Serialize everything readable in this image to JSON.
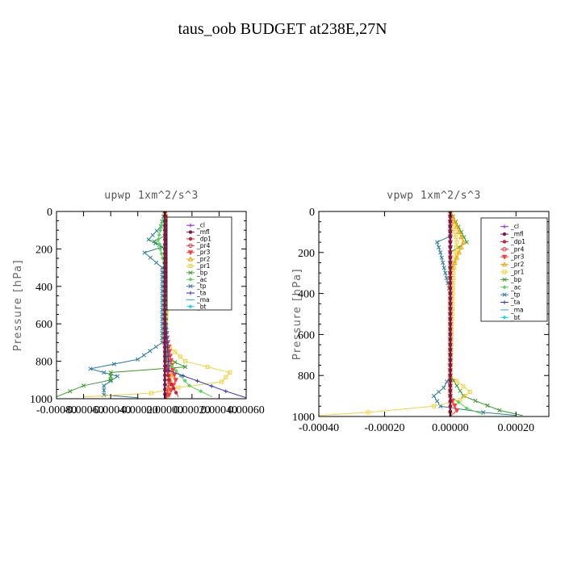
{
  "page": {
    "title": "taus_oob  BUDGET at238E,27N"
  },
  "legend_entries": [
    {
      "name": "_cl",
      "color": "#8a2be2",
      "marker": "star"
    },
    {
      "name": "_mfl",
      "color": "#7a1a4a",
      "marker": "dot"
    },
    {
      "name": "_dp1",
      "color": "#d21f3c",
      "marker": "dot"
    },
    {
      "name": "_pr4",
      "color": "#e8363a",
      "marker": "circle"
    },
    {
      "name": "_pr3",
      "color": "#ff3a3a",
      "marker": "triangle-down"
    },
    {
      "name": "_pr2",
      "color": "#f4a300",
      "marker": "triangle"
    },
    {
      "name": "_pr1",
      "color": "#f2d23a",
      "marker": "square"
    },
    {
      "name": "_bp",
      "color": "#3c9e2a",
      "marker": "x"
    },
    {
      "name": "_ac",
      "color": "#55d655",
      "marker": "diamond"
    },
    {
      "name": "_tp",
      "color": "#2f7fa0",
      "marker": "x"
    },
    {
      "name": "_ta",
      "color": "#2a2ad2",
      "marker": "plus"
    },
    {
      "name": "_ma",
      "color": "#2ab0e0",
      "marker": "dash"
    },
    {
      "name": "_bt",
      "color": "#1ed8e8",
      "marker": "diamond"
    }
  ],
  "chart_data": [
    {
      "type": "line",
      "title": "upwp   1xm^2/s^3",
      "ylabel": "Pressure [hPa]",
      "xlabel": "",
      "xlim": [
        -0.0008,
        0.0006
      ],
      "ylim": [
        1000,
        0
      ],
      "y_inverted": true,
      "xticks": [
        "-0.00080",
        "-0.00060",
        "-0.00040",
        "-0.00020",
        "0.00000",
        "0.00020",
        "0.00040",
        "0.00060"
      ],
      "yticks": [
        "0",
        "200",
        "400",
        "600",
        "800",
        "1000"
      ],
      "ytick_values": [
        0,
        200,
        400,
        600,
        800,
        1000
      ],
      "xtick_values": [
        -0.0008,
        -0.0006,
        -0.0004,
        -0.0002,
        0.0,
        0.0002,
        0.0004,
        0.0006
      ],
      "legend_position": "top-right",
      "series": [
        {
          "name": "_tp",
          "points": [
            [
              0,
              0
            ],
            [
              -3e-05,
              80
            ],
            [
              -0.00012,
              150
            ],
            [
              -2e-05,
              190
            ],
            [
              -0.00015,
              220
            ],
            [
              -2e-05,
              300
            ],
            [
              -2e-05,
              700
            ],
            [
              -0.0002,
              790
            ],
            [
              -0.00055,
              840
            ],
            [
              -0.00035,
              880
            ],
            [
              -0.00045,
              930
            ],
            [
              -0.00045,
              980
            ],
            [
              -0.0002,
              995
            ]
          ]
        },
        {
          "name": "_bp",
          "points": [
            [
              0,
              0
            ],
            [
              0,
              130
            ],
            [
              -8e-05,
              160
            ],
            [
              0,
              200
            ],
            [
              0,
              780
            ],
            [
              0.00015,
              830
            ],
            [
              -0.0004,
              860
            ],
            [
              -0.0004,
              900
            ],
            [
              -0.0006,
              930
            ],
            [
              -0.0008,
              990
            ]
          ]
        },
        {
          "name": "_pr1",
          "points": [
            [
              0,
              0
            ],
            [
              5e-05,
              150
            ],
            [
              3e-05,
              280
            ],
            [
              0,
              700
            ],
            [
              0.00015,
              800
            ],
            [
              0.00048,
              860
            ],
            [
              0.00042,
              910
            ],
            [
              0.0001,
              940
            ],
            [
              -0.0001,
              970
            ],
            [
              -0.0006,
              990
            ]
          ]
        },
        {
          "name": "_pr2",
          "points": [
            [
              0,
              0
            ],
            [
              4e-05,
              140
            ],
            [
              2e-05,
              250
            ],
            [
              0,
              700
            ],
            [
              5e-05,
              850
            ],
            [
              2e-05,
              1000
            ]
          ]
        },
        {
          "name": "_pr3",
          "points": [
            [
              0,
              0
            ],
            [
              2e-05,
              160
            ],
            [
              0,
              600
            ],
            [
              5e-05,
              820
            ],
            [
              8e-05,
              900
            ],
            [
              3e-05,
              980
            ],
            [
              0,
              1000
            ]
          ]
        },
        {
          "name": "_pr4",
          "points": [
            [
              0,
              0
            ],
            [
              1e-05,
              150
            ],
            [
              0,
              700
            ],
            [
              3e-05,
              900
            ],
            [
              1e-05,
              1000
            ]
          ]
        },
        {
          "name": "_dp1",
          "points": [
            [
              0,
              0
            ],
            [
              1e-05,
              150
            ],
            [
              0,
              800
            ],
            [
              3e-05,
              900
            ],
            [
              0.0001,
              990
            ]
          ]
        },
        {
          "name": "_ac",
          "points": [
            [
              0,
              0
            ],
            [
              -5e-05,
              150
            ],
            [
              0,
              300
            ],
            [
              2e-05,
              800
            ],
            [
              0.00018,
              930
            ],
            [
              0.00035,
              990
            ]
          ]
        },
        {
          "name": "_ta",
          "points": [
            [
              0,
              0
            ],
            [
              0,
              500
            ],
            [
              3e-05,
              850
            ],
            [
              0.00045,
              960
            ],
            [
              0.0006,
              995
            ]
          ]
        },
        {
          "name": "_cl",
          "points": [
            [
              0,
              0
            ],
            [
              0,
              1000
            ]
          ]
        },
        {
          "name": "_mfl",
          "points": [
            [
              0,
              0
            ],
            [
              0,
              1000
            ]
          ]
        }
      ]
    },
    {
      "type": "line",
      "title": "vpwp   1xm^2/s^3",
      "ylabel": "Pressure [hPa]",
      "xlabel": "",
      "xlim": [
        -0.0004,
        0.0003
      ],
      "ylim": [
        1000,
        0
      ],
      "y_inverted": true,
      "xticks": [
        "-0.00040",
        "-0.00020",
        "0.00000",
        "0.00020"
      ],
      "xtick_values": [
        -0.0004,
        -0.0002,
        0.0,
        0.0002
      ],
      "yticks": [
        "0",
        "200",
        "400",
        "600",
        "800",
        "1000"
      ],
      "ytick_values": [
        0,
        200,
        400,
        600,
        800,
        1000
      ],
      "legend_position": "top-right",
      "series": [
        {
          "name": "_tp",
          "points": [
            [
              0,
              0
            ],
            [
              0,
              120
            ],
            [
              -4e-05,
              150
            ],
            [
              -3e-05,
              200
            ],
            [
              0,
              400
            ],
            [
              0,
              800
            ],
            [
              -2e-05,
              860
            ],
            [
              -5e-05,
              900
            ],
            [
              -3e-05,
              950
            ],
            [
              0.0001,
              980
            ],
            [
              0.0002,
              995
            ]
          ]
        },
        {
          "name": "_bp",
          "points": [
            [
              0,
              0
            ],
            [
              5e-05,
              150
            ],
            [
              0,
              200
            ],
            [
              0,
              800
            ],
            [
              4e-05,
              900
            ],
            [
              0.00015,
              970
            ],
            [
              0.00022,
              995
            ]
          ]
        },
        {
          "name": "_pr1",
          "points": [
            [
              0,
              0
            ],
            [
              2e-05,
              150
            ],
            [
              1e-05,
              300
            ],
            [
              0,
              800
            ],
            [
              6e-05,
              880
            ],
            [
              3e-05,
              920
            ],
            [
              -5e-05,
              950
            ],
            [
              -0.00025,
              980
            ],
            [
              -0.0004,
              995
            ]
          ]
        },
        {
          "name": "_pr2",
          "points": [
            [
              0,
              0
            ],
            [
              4e-05,
              150
            ],
            [
              0,
              300
            ],
            [
              0,
              1000
            ]
          ]
        },
        {
          "name": "_ac",
          "points": [
            [
              0,
              0
            ],
            [
              0,
              900
            ],
            [
              5e-05,
              960
            ],
            [
              0.0001,
              990
            ]
          ]
        },
        {
          "name": "_pr3",
          "points": [
            [
              0,
              0
            ],
            [
              0,
              900
            ],
            [
              2e-05,
              970
            ],
            [
              0,
              1000
            ]
          ]
        },
        {
          "name": "_dp1",
          "points": [
            [
              0,
              0
            ],
            [
              0,
              1000
            ]
          ]
        },
        {
          "name": "_cl",
          "points": [
            [
              0,
              0
            ],
            [
              0,
              1000
            ]
          ]
        },
        {
          "name": "_mfl",
          "points": [
            [
              0,
              0
            ],
            [
              0,
              1000
            ]
          ]
        }
      ]
    }
  ]
}
